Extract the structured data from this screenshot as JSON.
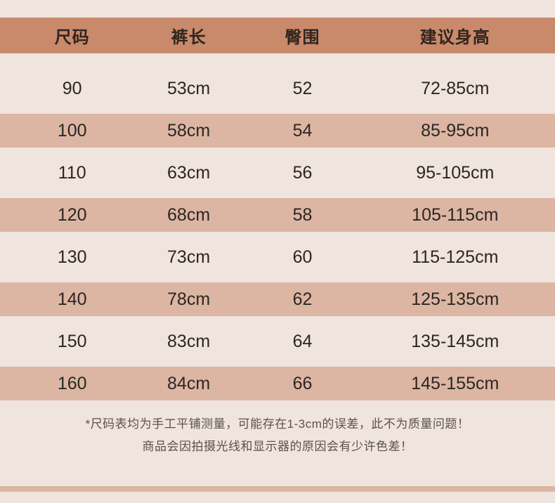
{
  "table": {
    "headers": [
      "尺码",
      "裤长",
      "臀围",
      "建议身高"
    ],
    "rows": [
      [
        "90",
        "53cm",
        "52",
        "72-85cm"
      ],
      [
        "100",
        "58cm",
        "54",
        "85-95cm"
      ],
      [
        "110",
        "63cm",
        "56",
        "95-105cm"
      ],
      [
        "120",
        "68cm",
        "58",
        "105-115cm"
      ],
      [
        "130",
        "73cm",
        "60",
        "115-125cm"
      ],
      [
        "140",
        "78cm",
        "62",
        "125-135cm"
      ],
      [
        "150",
        "83cm",
        "64",
        "135-145cm"
      ],
      [
        "160",
        "84cm",
        "66",
        "145-155cm"
      ]
    ]
  },
  "notes": {
    "line1": "*尺码表均为手工平铺测量，可能存在1-3cm的误差，此不为质量问题！",
    "line2": "商品会因拍摄光线和显示器的原因会有少许色差！"
  },
  "colors": {
    "page_bg": "#f0e4de",
    "header_bg": "#c98a6b",
    "stripe_bg": "#dcb6a3",
    "table_text": "#2b2623",
    "note_text": "#5a524e"
  }
}
